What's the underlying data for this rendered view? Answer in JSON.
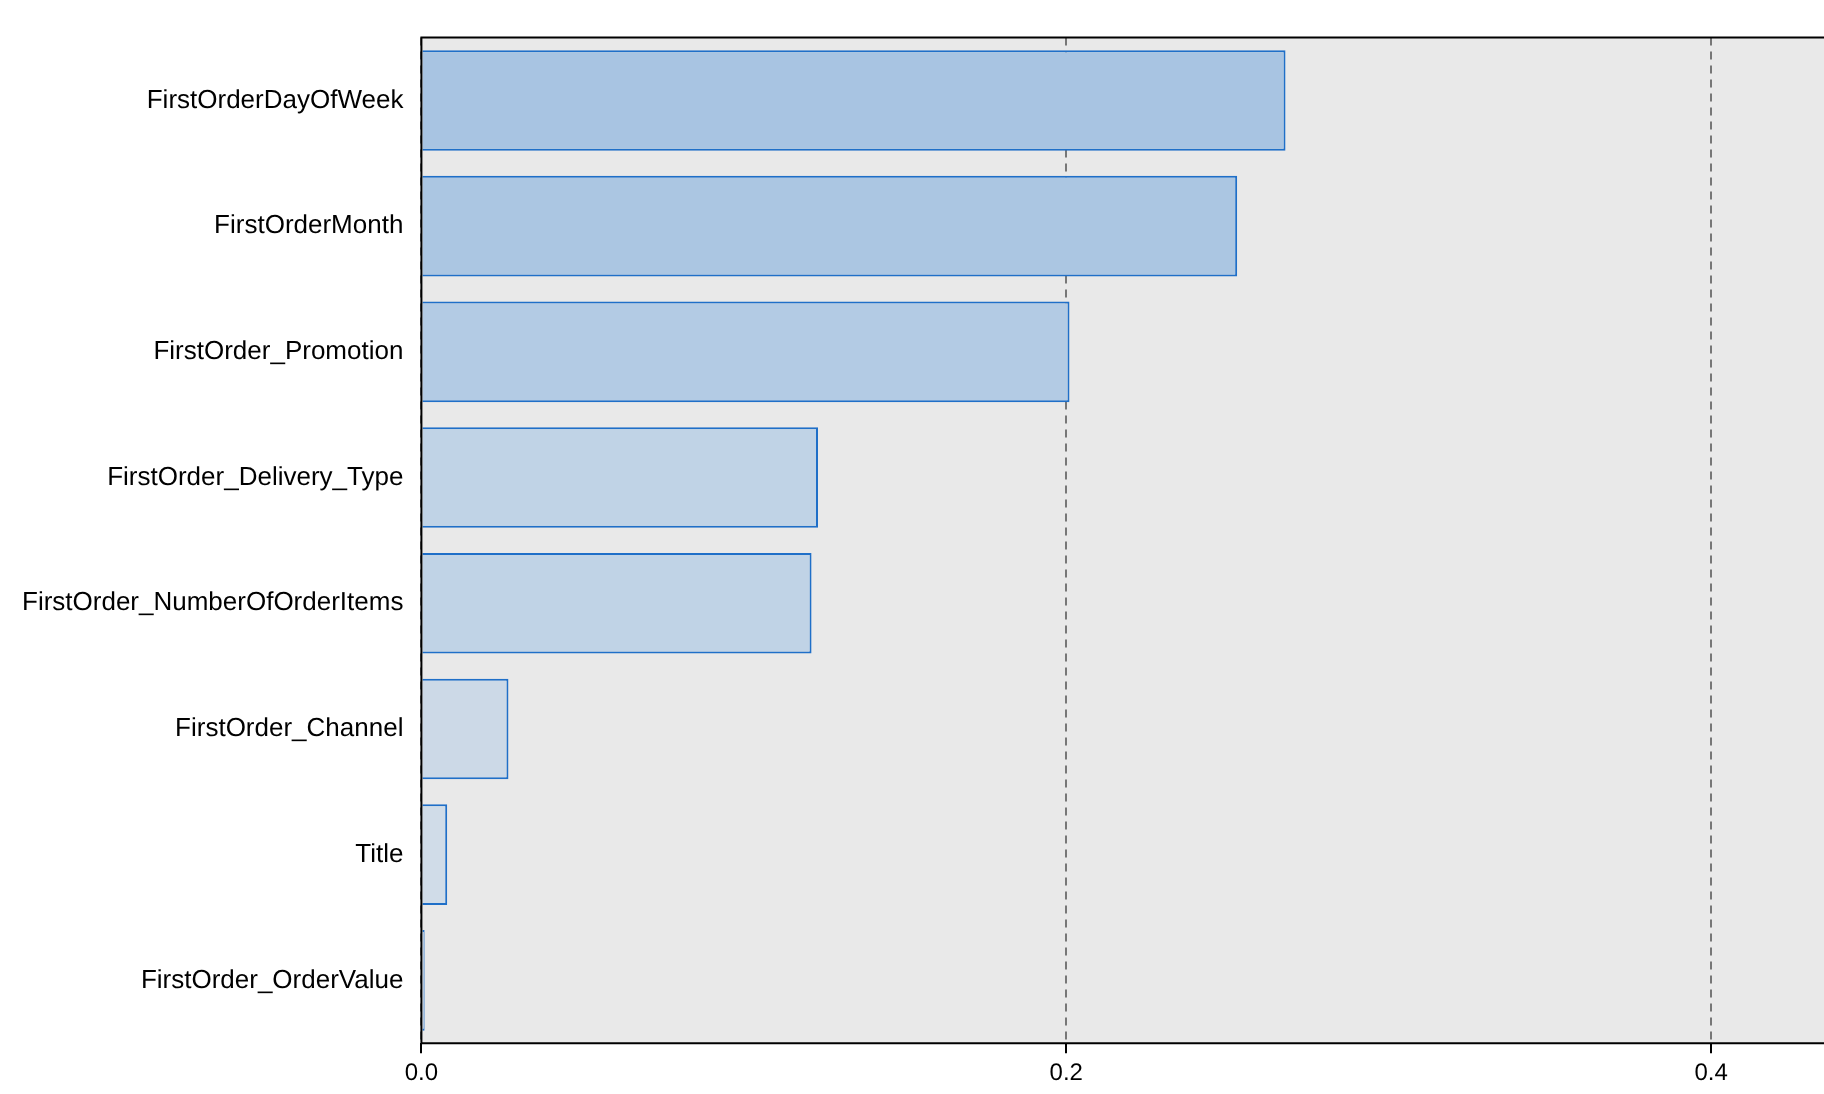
{
  "chart_data": {
    "type": "bar",
    "orientation": "horizontal",
    "categories": [
      "FirstOrderDayOfWeek",
      "FirstOrderMonth",
      "FirstOrder_Promotion",
      "FirstOrder_Delivery_Type",
      "FirstOrder_NumberOfOrderItems",
      "FirstOrder_Channel",
      "Title",
      "FirstOrder_OrderValue"
    ],
    "values": [
      0.268,
      0.253,
      0.201,
      0.123,
      0.121,
      0.027,
      0.008,
      0.001
    ],
    "colors": [
      "#a8c4e2",
      "#abc6e2",
      "#b3cbe4",
      "#c0d3e6",
      "#c0d3e6",
      "#ccd9e7",
      "#d0dce8",
      "#d2dde8"
    ],
    "xlim": [
      0,
      0.435
    ],
    "xticks": [
      {
        "value": 0,
        "label": "0.0"
      },
      0.2,
      0.4
    ],
    "grid": "x"
  }
}
